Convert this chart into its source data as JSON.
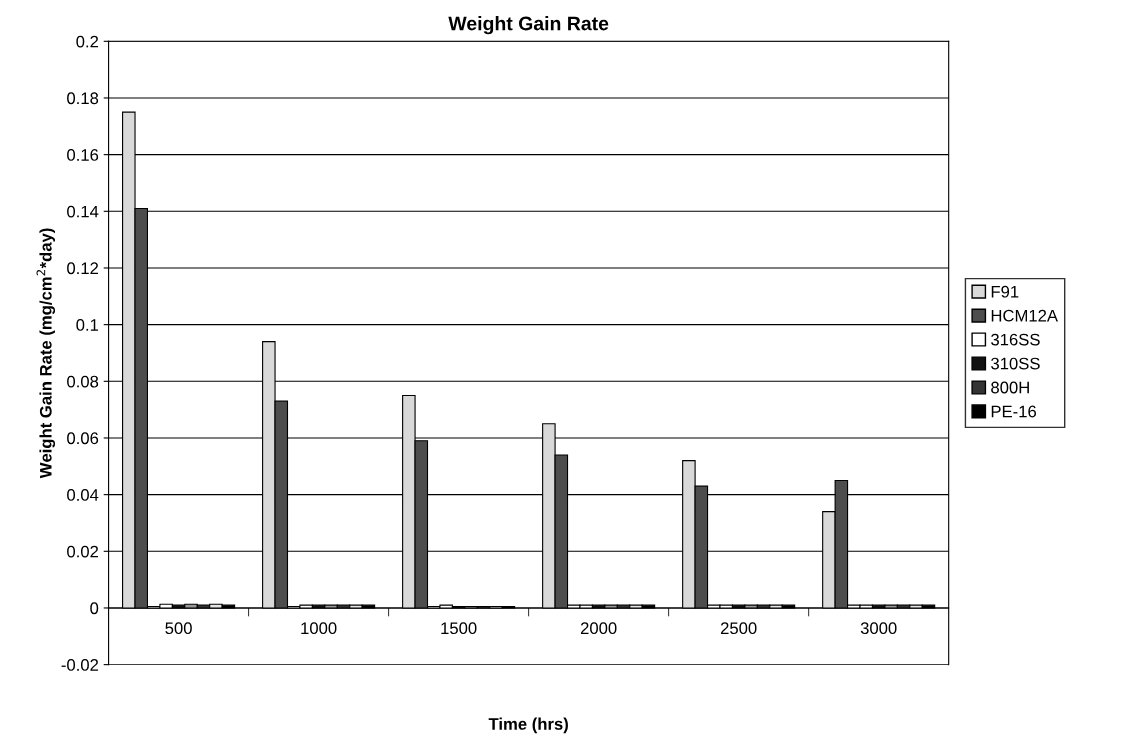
{
  "chart_data": {
    "type": "bar",
    "title": "Weight Gain Rate",
    "xlabel": "Time (hrs)",
    "ylabel": "Weight Gain Rate (mg/cm$^{2}$*day)",
    "categories": [
      "500",
      "1000",
      "1500",
      "2000",
      "2500",
      "3000"
    ],
    "series": [
      {
        "name": "F91",
        "color": "#d9d9d9",
        "values": [
          0.175,
          0.094,
          0.075,
          0.065,
          0.052,
          0.034
        ]
      },
      {
        "name": "HCM12A",
        "color": "#4d4d4d",
        "values": [
          0.141,
          0.073,
          0.059,
          0.054,
          0.043,
          0.045
        ]
      },
      {
        "color": "#ffffff",
        "values": [
          0.0005,
          0.0005,
          0.0005,
          0.001,
          0.001,
          0.001
        ]
      },
      {
        "name": "316SS",
        "color": "#ffffff",
        "values": [
          0.0013,
          0.001,
          0.001,
          0.001,
          0.001,
          0.001
        ]
      },
      {
        "name": "310SS",
        "color": "#111111",
        "values": [
          0.001,
          0.001,
          0.0005,
          0.001,
          0.001,
          0.001
        ]
      },
      {
        "color": "#999999",
        "values": [
          0.0013,
          0.001,
          0.0005,
          0.001,
          0.001,
          0.001
        ]
      },
      {
        "name": "800H",
        "color": "#333333",
        "values": [
          0.001,
          0.001,
          0.0005,
          0.001,
          0.001,
          0.001
        ]
      },
      {
        "color": "#e6e6e6",
        "values": [
          0.0013,
          0.001,
          0.0005,
          0.001,
          0.001,
          0.001
        ]
      },
      {
        "name": "PE-16",
        "color": "#000000",
        "values": [
          0.001,
          0.001,
          0.0005,
          0.001,
          0.001,
          0.001
        ]
      }
    ],
    "ylim": [
      -0.02,
      0.2
    ],
    "yticks": [
      -0.02,
      0,
      0.02,
      0.04,
      0.06,
      0.08,
      0.1,
      0.12,
      0.14,
      0.16,
      0.18,
      0.2
    ],
    "grid": "y",
    "legend": "right"
  }
}
